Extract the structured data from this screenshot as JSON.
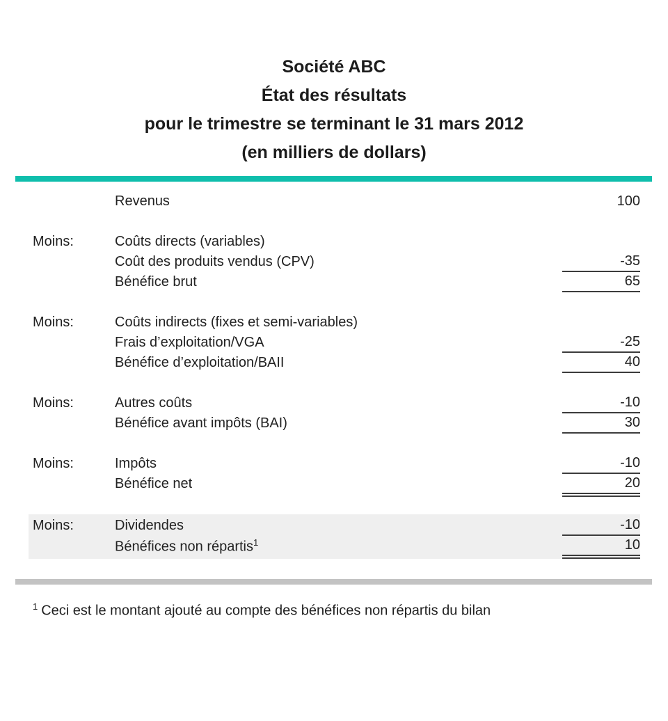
{
  "header": {
    "company": "Société ABC",
    "statement_title": "État des résultats",
    "period": "pour le trimestre se terminant le 31 mars 2012",
    "units": "(en milliers de dollars)"
  },
  "colors": {
    "accent_teal": "#0fbeac",
    "bottom_divider_gray": "#c3c3c3",
    "shaded_section_bg": "#efefef",
    "text": "#222222",
    "rule_lines": "#3c3c3c"
  },
  "statement": {
    "rows": [
      {
        "prefix": "",
        "label": "Revenus",
        "amount": "100",
        "underline": "none",
        "shaded": false
      },
      {
        "prefix": "Moins:",
        "label": "Coûts directs (variables)",
        "amount": "",
        "underline": "none",
        "shaded": false
      },
      {
        "prefix": "",
        "label": "Coût des produits vendus (CPV)",
        "amount": "-35",
        "underline": "single",
        "shaded": false
      },
      {
        "prefix": "",
        "label": "Bénéfice brut",
        "amount": "65",
        "underline": "single",
        "shaded": false
      },
      {
        "prefix": "Moins:",
        "label": "Coûts indirects (fixes et semi-variables)",
        "amount": "",
        "underline": "none",
        "shaded": false
      },
      {
        "prefix": "",
        "label": "Frais d’exploitation/VGA",
        "amount": "-25",
        "underline": "single",
        "shaded": false
      },
      {
        "prefix": "",
        "label": "Bénéfice d’exploitation/BAII",
        "amount": "40",
        "underline": "single",
        "shaded": false
      },
      {
        "prefix": "Moins:",
        "label": "Autres coûts",
        "amount": "-10",
        "underline": "single",
        "shaded": false
      },
      {
        "prefix": "",
        "label": "Bénéfice avant impôts (BAI)",
        "amount": "30",
        "underline": "single",
        "shaded": false
      },
      {
        "prefix": "Moins:",
        "label": "Impôts",
        "amount": "-10",
        "underline": "single",
        "shaded": false
      },
      {
        "prefix": "",
        "label": "Bénéfice net",
        "amount": "20",
        "underline": "double",
        "shaded": false
      },
      {
        "prefix": "Moins:",
        "label": "Dividendes",
        "amount": "-10",
        "underline": "single",
        "shaded": true
      },
      {
        "prefix": "",
        "label": "Bénéfices non répartis",
        "label_sup": "1",
        "amount": "10",
        "underline": "double",
        "shaded": true
      }
    ]
  },
  "footnote": {
    "marker": "1",
    "text": "Ceci est le montant ajouté au compte des bénéfices non répartis du bilan"
  }
}
